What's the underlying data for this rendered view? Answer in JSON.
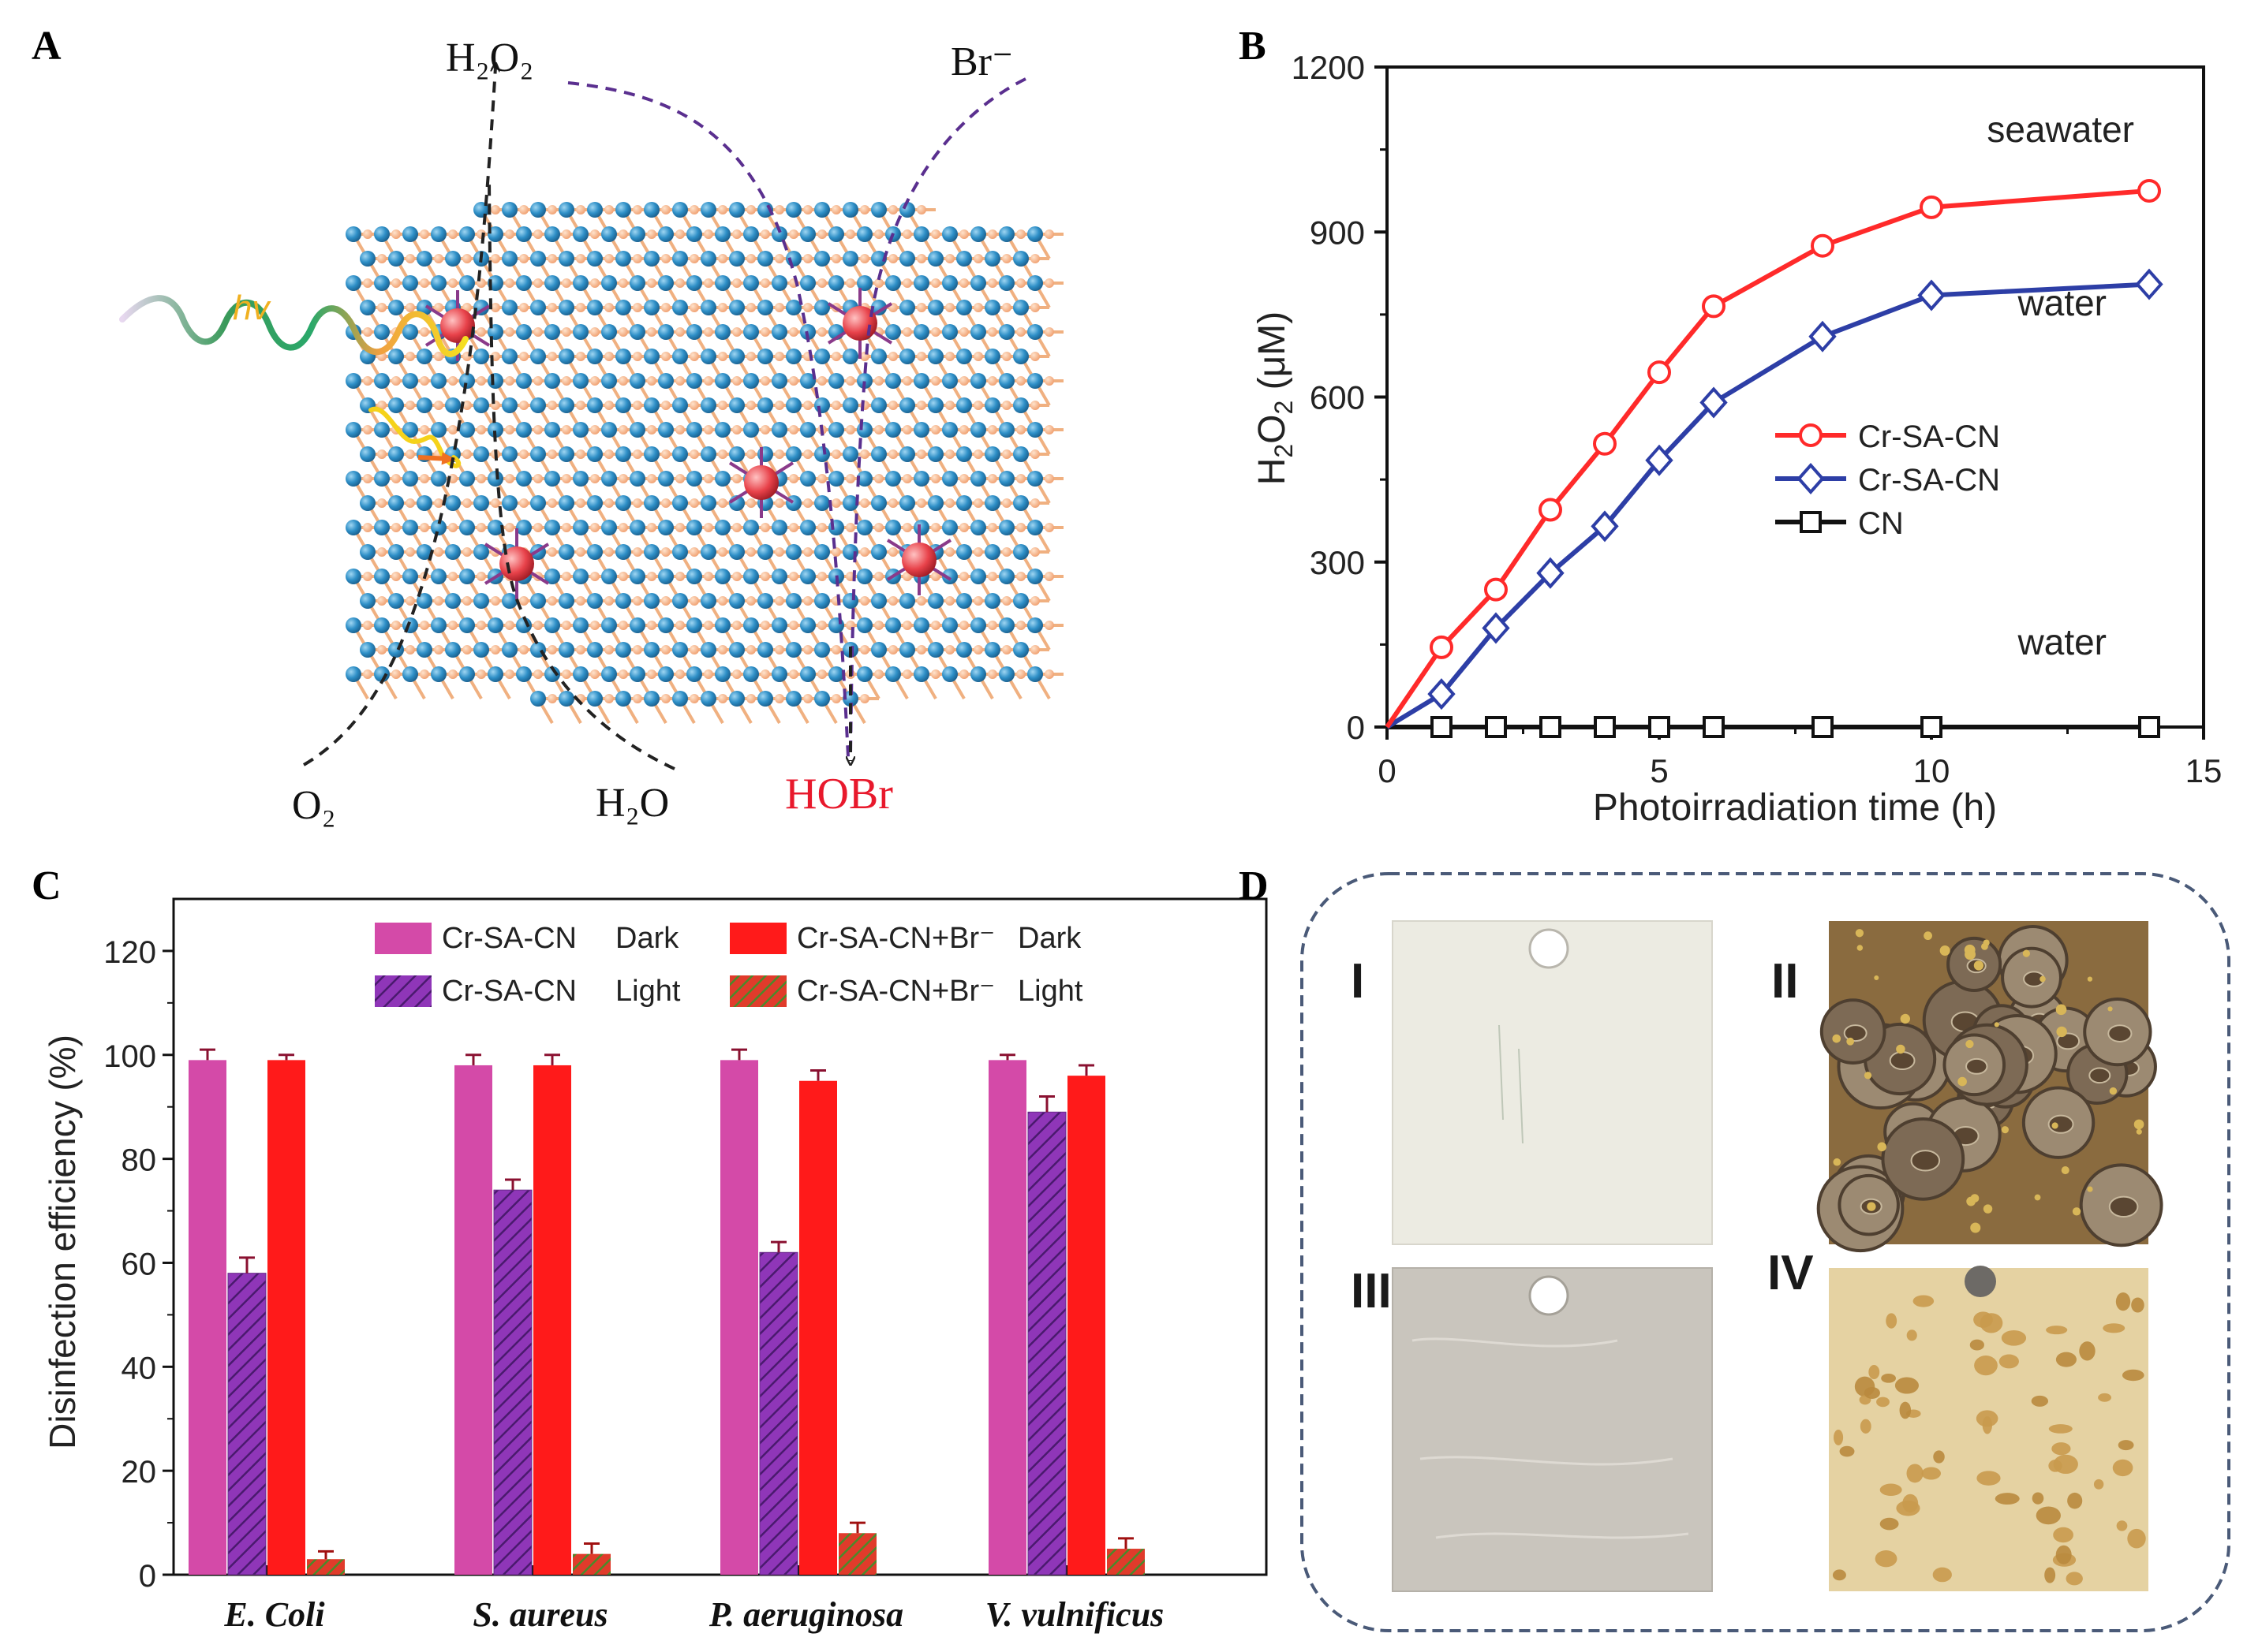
{
  "panel_labels": {
    "a": "A",
    "b": "B",
    "c": "C",
    "d": "D"
  },
  "panel_a": {
    "h2o2_label": "H₂O₂",
    "br_label": "Br⁻",
    "hv_label": "hv",
    "o2_label": "O₂",
    "h2o_label": "H₂O",
    "hobr_label": "HOBr",
    "colors": {
      "lattice_node": "#2e8fc7",
      "lattice_link": "#f2a873",
      "metal_center": "#e8424a",
      "metal_bond": "#8a3a8a",
      "arrow_black": "#222222",
      "arrow_purple": "#5a2f8f",
      "hobr": "#e8192c"
    },
    "icons": [
      "light-wave-icon",
      "arrow-icon",
      "lattice-node-icon",
      "metal-center-icon"
    ]
  },
  "chart_data": [
    {
      "panel": "B",
      "type": "line",
      "title": "",
      "xlabel": "Photoirradiation time (h)",
      "ylabel": "H2O2 (μM)",
      "ylabel_main": "H",
      "ylabel_sub1": "2",
      "ylabel_mid": "O",
      "ylabel_sub2": "2",
      "ylabel_unit": " (μM)",
      "xlim": [
        0,
        15
      ],
      "ylim": [
        0,
        1200
      ],
      "xticks": [
        0,
        5,
        10,
        15
      ],
      "yticks": [
        0,
        300,
        600,
        900,
        1200
      ],
      "legend_position": "center-right",
      "series": [
        {
          "name": "Cr-SA-CN",
          "annotation": "seawater",
          "color": "#ff2a2a",
          "marker": "circle",
          "x": [
            0,
            1,
            2,
            3,
            4,
            5,
            6,
            8,
            10,
            14
          ],
          "y": [
            0,
            145,
            250,
            395,
            515,
            645,
            765,
            875,
            945,
            975
          ]
        },
        {
          "name": "Cr-SA-CN",
          "annotation": "water",
          "color": "#2d3ea6",
          "marker": "diamond",
          "x": [
            0,
            1,
            2,
            3,
            4,
            5,
            6,
            8,
            10,
            14
          ],
          "y": [
            0,
            60,
            180,
            280,
            365,
            485,
            590,
            710,
            785,
            805
          ]
        },
        {
          "name": "CN",
          "annotation": "water",
          "color": "#111111",
          "marker": "square",
          "x": [
            0,
            1,
            2,
            3,
            4,
            5,
            6,
            8,
            10,
            14
          ],
          "y": [
            0,
            0,
            0,
            0,
            0,
            0,
            0,
            0,
            0,
            0
          ]
        }
      ]
    },
    {
      "panel": "C",
      "type": "bar",
      "title": "",
      "xlabel": "",
      "ylabel": "Disinfection efficiency (%)",
      "ylim": [
        0,
        130
      ],
      "yticks": [
        0,
        20,
        40,
        60,
        80,
        100,
        120
      ],
      "categories": [
        "E. Coli",
        "S. aureus",
        "P. aeruginosa",
        "V. vulnificus"
      ],
      "legend_position": "top",
      "series": [
        {
          "name": "Cr-SA-CN",
          "condition": "Dark",
          "color": "#d44aa8",
          "pattern": "solid",
          "values": [
            99,
            98,
            99,
            99
          ],
          "errors": [
            2,
            2,
            2,
            1
          ]
        },
        {
          "name": "Cr-SA-CN",
          "condition": "Light",
          "color": "#8f36b8",
          "pattern": "hatch",
          "values": [
            58,
            74,
            62,
            89
          ],
          "errors": [
            3,
            2,
            2,
            3
          ]
        },
        {
          "name": "Cr-SA-CN+Br⁻",
          "condition": "Dark",
          "color": "#ff1a1a",
          "pattern": "solid",
          "values": [
            99,
            98,
            95,
            96
          ],
          "errors": [
            1,
            2,
            2,
            2
          ]
        },
        {
          "name": "Cr-SA-CN+Br⁻",
          "condition": "Light",
          "color": "#e03b2b",
          "pattern": "green-hatch",
          "values": [
            3,
            4,
            8,
            5
          ],
          "errors": [
            1.5,
            2,
            2,
            2
          ]
        }
      ]
    }
  ],
  "panel_d": {
    "samples": [
      {
        "label": "I",
        "description_color": "#ecebe2"
      },
      {
        "label": "II",
        "description_color": "#8a6b3f"
      },
      {
        "label": "III",
        "description_color": "#c9c5bd"
      },
      {
        "label": "IV",
        "description_color": "#e5d2a2"
      }
    ]
  }
}
